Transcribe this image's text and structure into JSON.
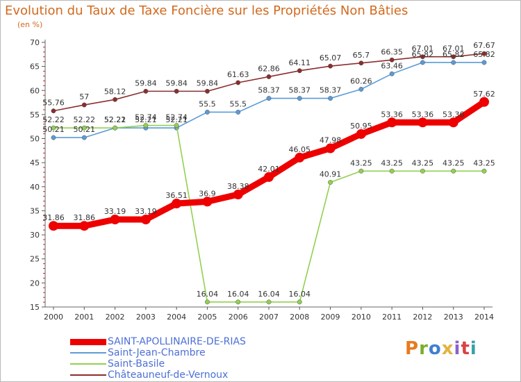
{
  "header": {
    "title": "Evolution du Taux de Taxe Foncière sur les Propriétés Non Bâties",
    "unit": "(en %)"
  },
  "logo": {
    "text": "Proxiti",
    "colors": [
      "#e87a1e",
      "#7aae2a",
      "#3f7fd1",
      "#e2b43d",
      "#8a63c8",
      "#d94343",
      "#3aa0a8"
    ]
  },
  "chart_data": {
    "type": "line",
    "title": "Evolution du Taux de Taxe Foncière sur les Propriétés Non Bâties",
    "ylabel": "(en %)",
    "xlabel": "",
    "x": [
      "2000",
      "2001",
      "2002",
      "2003",
      "2004",
      "2005",
      "2006",
      "2007",
      "2008",
      "2009",
      "2010",
      "2011",
      "2012",
      "2013",
      "2014"
    ],
    "ylim": [
      15,
      70
    ],
    "yticks": [
      15,
      20,
      25,
      30,
      35,
      40,
      45,
      50,
      55,
      60,
      65,
      70
    ],
    "grid": false,
    "legend_position": "bottom-left",
    "series": [
      {
        "name": "SAINT-APOLLINAIRE-DE-RIAS",
        "color": "#ee0000",
        "emphasis": true,
        "values": [
          31.86,
          31.86,
          33.19,
          33.19,
          36.51,
          36.9,
          38.38,
          42.01,
          46.05,
          47.98,
          50.95,
          53.36,
          53.36,
          53.36,
          57.62
        ],
        "labels": [
          "31.86",
          "31.86",
          "33.19",
          "33.19",
          "36.51",
          "36.9",
          "38.38",
          "42.01",
          "46.05",
          "47.98",
          "50.95",
          "53.36",
          "53.36",
          "53.36",
          "57.62"
        ]
      },
      {
        "name": "Saint-Jean-Chambre",
        "color": "#5b9bd5",
        "values": [
          50.21,
          50.21,
          52.21,
          52.21,
          52.21,
          55.5,
          55.5,
          58.37,
          58.37,
          58.37,
          60.26,
          63.46,
          65.82,
          65.82,
          65.82
        ],
        "labels": [
          "50.21",
          "50.21",
          "52.21",
          "52.21",
          "52.21",
          "55.5",
          "55.5",
          "58.37",
          "58.37",
          "58.37",
          "60.26",
          "63.46",
          "65.82",
          "65.82",
          "65.82"
        ]
      },
      {
        "name": "Saint-Basile",
        "color": "#92d050",
        "values": [
          52.22,
          52.22,
          52.22,
          52.74,
          52.74,
          16.04,
          16.04,
          16.04,
          16.04,
          40.91,
          43.25,
          43.25,
          43.25,
          43.25,
          43.25
        ],
        "labels": [
          "52.22",
          "52.22",
          "52.22",
          "52.74",
          "52.74",
          "16.04",
          "16.04",
          "16.04",
          "16.04",
          "40.91",
          "43.25",
          "43.25",
          "43.25",
          "43.25",
          "43.25"
        ]
      },
      {
        "name": "Châteauneuf-de-Vernoux",
        "color": "#8b2d2d",
        "values": [
          55.76,
          57,
          58.12,
          59.84,
          59.84,
          59.84,
          61.63,
          62.86,
          64.11,
          65.07,
          65.7,
          66.35,
          67.01,
          67.01,
          67.67
        ],
        "labels": [
          "55.76",
          "57",
          "58.12",
          "59.84",
          "59.84",
          "59.84",
          "61.63",
          "62.86",
          "64.11",
          "65.07",
          "65.7",
          "66.35",
          "67.01",
          "67.01",
          "67.67"
        ]
      }
    ]
  }
}
